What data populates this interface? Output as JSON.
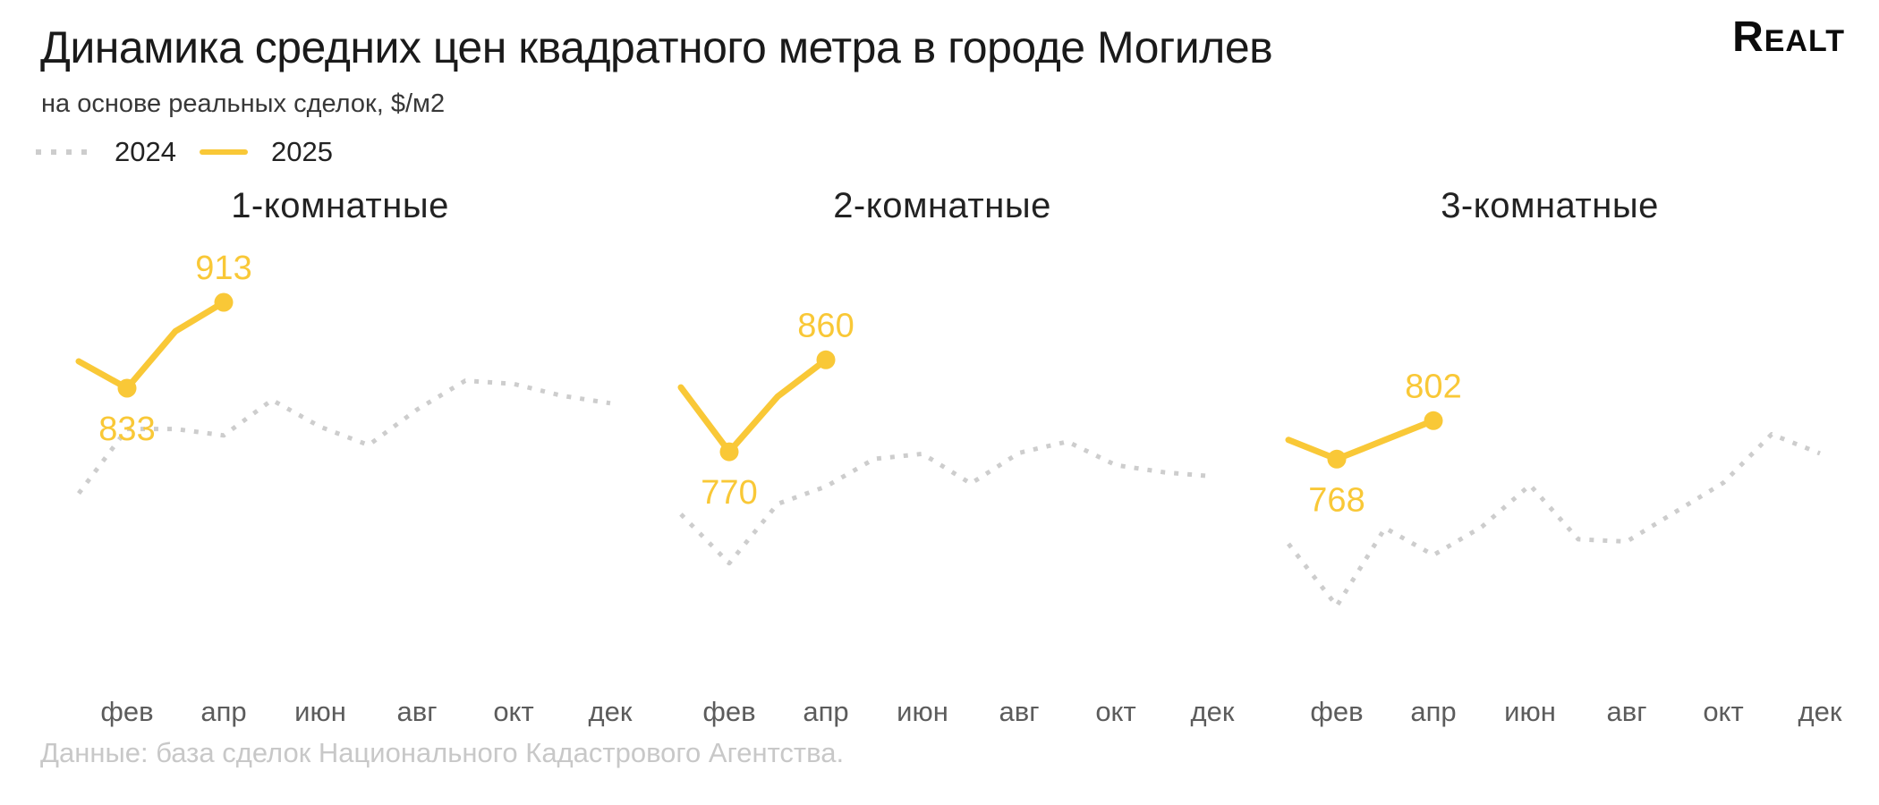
{
  "header": {
    "title": "Динамика средних цен квадратного метра в городе Могилев",
    "subtitle": "на основе реальных сделок, $/м2",
    "logo": "Realt"
  },
  "legend": {
    "items": [
      {
        "label": "2024",
        "style": "dotted",
        "color": "#cdcdcd"
      },
      {
        "label": "2025",
        "style": "solid",
        "color": "#f9c837"
      }
    ]
  },
  "footer": {
    "source": "Данные: база сделок Национального Кадастрового Агентства."
  },
  "colors": {
    "accent_yellow": "#f9c837",
    "dotted_gray": "#cdcdcd",
    "axis_label_gray": "#5c5c5c",
    "footer_gray": "#c8c8c8",
    "title_black": "#1a1a1a"
  },
  "chart_data": [
    {
      "type": "line",
      "title": "1-комнатные",
      "categories": [
        "янв",
        "фев",
        "мар",
        "апр",
        "май",
        "июн",
        "июл",
        "авг",
        "сен",
        "окт",
        "ноя",
        "дек"
      ],
      "x_tick_labels": [
        "фев",
        "апр",
        "июн",
        "авг",
        "окт",
        "дек"
      ],
      "ylim": [
        628,
        928
      ],
      "grid": false,
      "series": [
        {
          "name": "2024",
          "style": "dotted",
          "color": "#cdcdcd",
          "values": [
            735,
            795,
            795,
            789,
            822,
            797,
            780,
            813,
            840,
            837,
            826,
            819
          ]
        },
        {
          "name": "2025",
          "style": "solid",
          "color": "#f9c837",
          "values": [
            858,
            833,
            886,
            913
          ],
          "labeled_points": [
            {
              "month": "фев",
              "value": 833,
              "label_position": "below"
            },
            {
              "month": "апр",
              "value": 913,
              "label_position": "above"
            }
          ]
        }
      ]
    },
    {
      "type": "line",
      "title": "2-комнатные",
      "categories": [
        "янв",
        "фев",
        "мар",
        "апр",
        "май",
        "июн",
        "июл",
        "авг",
        "сен",
        "окт",
        "ноя",
        "дек"
      ],
      "x_tick_labels": [
        "фев",
        "апр",
        "июн",
        "авг",
        "окт",
        "дек"
      ],
      "ylim": [
        617,
        932
      ],
      "grid": false,
      "series": [
        {
          "name": "2024",
          "style": "dotted",
          "color": "#cdcdcd",
          "values": [
            709,
            661,
            719,
            736,
            763,
            768,
            739,
            769,
            780,
            757,
            750,
            746
          ]
        },
        {
          "name": "2025",
          "style": "solid",
          "color": "#f9c837",
          "values": [
            833,
            770,
            824,
            860
          ],
          "labeled_points": [
            {
              "month": "фев",
              "value": 770,
              "label_position": "below"
            },
            {
              "month": "апр",
              "value": 860,
              "label_position": "above"
            }
          ]
        }
      ]
    },
    {
      "type": "line",
      "title": "3-комнатные",
      "categories": [
        "янв",
        "фев",
        "мар",
        "апр",
        "май",
        "июн",
        "июл",
        "авг",
        "сен",
        "окт",
        "ноя",
        "дек"
      ],
      "x_tick_labels": [
        "фев",
        "апр",
        "июн",
        "авг",
        "окт",
        "дек"
      ],
      "ylim": [
        636,
        921
      ],
      "grid": false,
      "series": [
        {
          "name": "2024",
          "style": "dotted",
          "color": "#cdcdcd",
          "values": [
            693,
            638,
            707,
            683,
            708,
            745,
            697,
            695,
            721,
            747,
            790,
            773
          ]
        },
        {
          "name": "2025",
          "style": "solid",
          "color": "#f9c837",
          "values": [
            785,
            768,
            785,
            802
          ],
          "labeled_points": [
            {
              "month": "фев",
              "value": 768,
              "label_position": "below"
            },
            {
              "month": "апр",
              "value": 802,
              "label_position": "above"
            }
          ]
        }
      ]
    }
  ]
}
